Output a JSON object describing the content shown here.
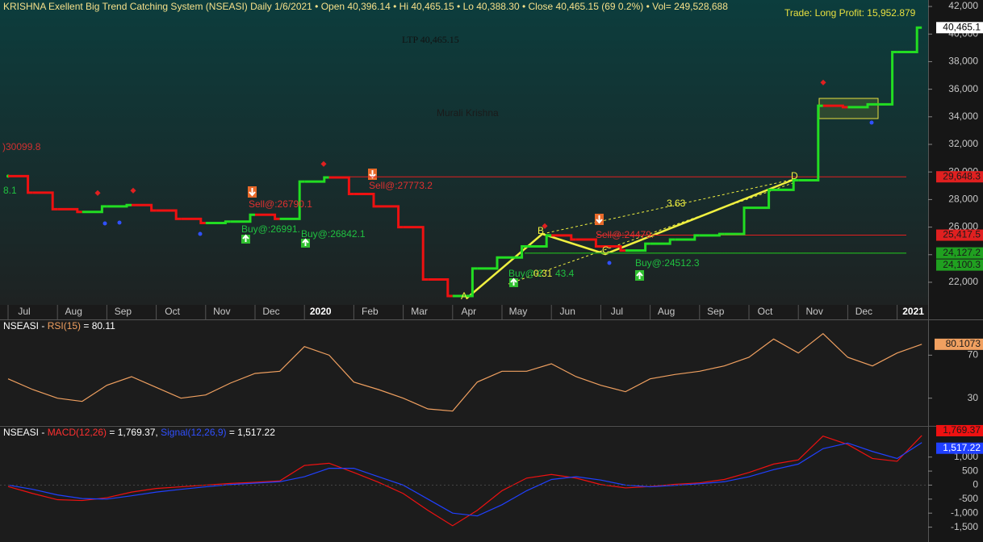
{
  "chart_data": [
    {
      "type": "line",
      "title": "KRISHNA Exellent Big Trend Catching System (NSEASI) Daily  1/6/2021  •  Open 40,396.14  •  Hi 40,465.15  •  Lo 40,388.30  •  Close 40,465.15 (69 0.2%)  •  Vol= 249,528,688",
      "categories": [
        "Jul",
        null,
        "Aug",
        null,
        "Sep",
        null,
        "Oct",
        null,
        "Nov",
        null,
        "Dec",
        null,
        "2020",
        null,
        "Feb",
        null,
        "Mar",
        null,
        "Apr",
        null,
        "May",
        null,
        "Jun",
        null,
        "Jul",
        null,
        "Aug",
        null,
        "Sep",
        null,
        "Oct",
        null,
        "Nov",
        null,
        "Dec",
        null,
        "2021",
        null
      ],
      "values": [
        29700,
        28500,
        27300,
        27100,
        27500,
        27600,
        27200,
        26600,
        26300,
        26400,
        26900,
        26600,
        29300,
        29600,
        28400,
        27500,
        26000,
        22200,
        21000,
        23000,
        23800,
        24600,
        25400,
        25100,
        24600,
        24300,
        24800,
        25100,
        25400,
        25500,
        27400,
        28700,
        29400,
        34800,
        34700,
        34900,
        38700,
        40465.15
      ],
      "color_up": "#22dd22",
      "color_down": "#ee1111",
      "ylim": [
        20360,
        42470
      ],
      "yticks": [
        {
          "value": 22000,
          "label": "22,000"
        },
        {
          "value": 24000,
          "label": "24,000"
        },
        {
          "value": 26000,
          "label": "26,000"
        },
        {
          "value": 28000,
          "label": "28,000"
        },
        {
          "value": 30000,
          "label": "30,000"
        },
        {
          "value": 32000,
          "label": "32,000"
        },
        {
          "value": 34000,
          "label": "34,000"
        },
        {
          "value": 36000,
          "label": "36,000"
        },
        {
          "value": 38000,
          "label": "38,000"
        },
        {
          "value": 40000,
          "label": "40,000"
        },
        {
          "value": 42000,
          "label": "42,000"
        }
      ],
      "last_tag": {
        "value": 40465.1,
        "label": "40,465.1"
      },
      "levels": [
        {
          "value": 29648.3,
          "label": "29,648.3",
          "color": "#e02020"
        },
        {
          "value": 25417.5,
          "label": "25,417.5",
          "color": "#e02020"
        },
        {
          "value": 24127.2,
          "label": "24,127.2",
          "color": "#20a020"
        },
        {
          "value": 24100.3,
          "label": "24,100.3",
          "color": "#20a020"
        }
      ],
      "annotations": [
        {
          "text": ")30099.8",
          "color": "#d03030"
        },
        {
          "text": "8.1",
          "color": "#20c040"
        },
        {
          "text": "Sell@:26790.1",
          "color": "#e03030"
        },
        {
          "text": "Buy@:26991.",
          "color": "#20c040"
        },
        {
          "text": "Buy@:26842.1",
          "color": "#20c040"
        },
        {
          "text": "Sell@:27773.2",
          "color": "#e03030"
        },
        {
          "text": "Sell@:24479.",
          "color": "#e03030"
        },
        {
          "text": "Buy@:24512.3",
          "color": "#20c040"
        },
        {
          "text": "Buy@:2",
          "color": "#20c040"
        },
        {
          "text": "0.31",
          "color": "#f0f040"
        },
        {
          "text": "43.4",
          "color": "#20c040"
        },
        {
          "text": "3.63",
          "color": "#f0f040"
        },
        {
          "text": "A",
          "color": "#f0f040"
        },
        {
          "text": "B",
          "color": "#f0f040"
        },
        {
          "text": "C",
          "color": "#f0f040"
        },
        {
          "text": "D",
          "color": "#f0f040"
        },
        {
          "text": "Murali Krishna",
          "color": "#1a1a1a"
        },
        {
          "text": "LTP 40,465.15",
          "color": "#111111"
        },
        {
          "text": "Trade: Long Profit: 15,952.879",
          "color": "#e8e040"
        }
      ]
    },
    {
      "type": "line",
      "title_parts": [
        "NSEASI - ",
        "RSI(15)",
        " = 80.11"
      ],
      "values": [
        48,
        38,
        30,
        27,
        42,
        50,
        40,
        30,
        33,
        44,
        53,
        55,
        78,
        70,
        45,
        38,
        30,
        20,
        18,
        45,
        55,
        55,
        62,
        50,
        42,
        36,
        48,
        52,
        55,
        60,
        68,
        85,
        72,
        90,
        68,
        60,
        72,
        80.11
      ],
      "color": "#f0a060",
      "ylim": [
        5,
        102.5
      ],
      "yticks": [
        30,
        70
      ],
      "last_tag": 80.1073
    },
    {
      "type": "line",
      "title_parts": [
        "NSEASI - ",
        "MACD(12,26)",
        " = 1,769.37, ",
        "Signal(12,26,9)",
        " = 1,517.22"
      ],
      "series": [
        {
          "color": "#ee1111",
          "values": [
            -50,
            -300,
            -520,
            -550,
            -450,
            -250,
            -120,
            -60,
            0,
            60,
            100,
            150,
            700,
            780,
            450,
            100,
            -300,
            -900,
            -1450,
            -900,
            -200,
            250,
            380,
            250,
            20,
            -100,
            -50,
            30,
            80,
            200,
            450,
            750,
            900,
            1750,
            1450,
            950,
            850,
            1769.37
          ],
          "last_tag": "1,769.37"
        },
        {
          "color": "#2040ff",
          "values": [
            0,
            -150,
            -350,
            -480,
            -500,
            -380,
            -250,
            -150,
            -60,
            20,
            70,
            120,
            300,
            600,
            600,
            300,
            0,
            -500,
            -1000,
            -1100,
            -700,
            -200,
            200,
            300,
            180,
            0,
            -60,
            -10,
            50,
            120,
            300,
            550,
            750,
            1300,
            1500,
            1200,
            950,
            1517.22
          ],
          "last_tag": "1,517.22"
        }
      ],
      "ylim": [
        -2030,
        2085
      ],
      "yticks": [
        {
          "value": -1500,
          "label": "-1,500"
        },
        {
          "value": -1000,
          "label": "-1,000"
        },
        -500,
        0,
        500,
        {
          "value": 1000,
          "label": "1,000"
        }
      ]
    }
  ]
}
